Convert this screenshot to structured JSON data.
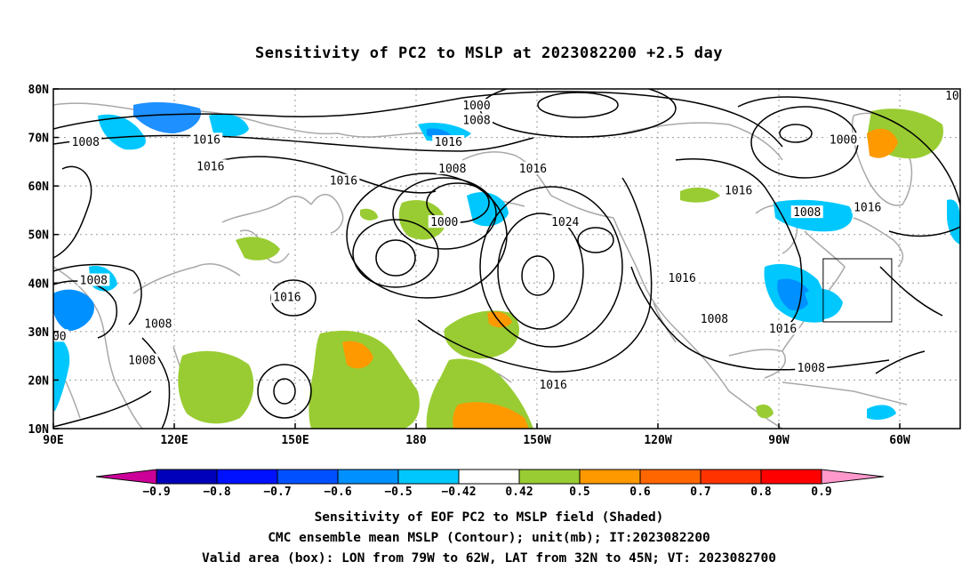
{
  "title": "Sensitivity of PC2 to MSLP at 2023082200 +2.5 day",
  "map": {
    "lon_ticks": [
      "90E",
      "120E",
      "150E",
      "180",
      "150W",
      "120W",
      "90W",
      "60W"
    ],
    "lat_ticks": [
      "80N",
      "70N",
      "60N",
      "50N",
      "40N",
      "30N",
      "20N",
      "10N"
    ],
    "contour_labels": [
      {
        "text": "1000",
        "lon": -165,
        "lat": 76.5
      },
      {
        "text": "1008",
        "lon": -165,
        "lat": 73.5
      },
      {
        "text": "1016",
        "lon": -172,
        "lat": 69
      },
      {
        "text": "1008",
        "lon": 98,
        "lat": 69
      },
      {
        "text": "1016",
        "lon": 128,
        "lat": 69.5
      },
      {
        "text": "1016",
        "lon": 129,
        "lat": 64
      },
      {
        "text": "1016",
        "lon": 162,
        "lat": 61
      },
      {
        "text": "1008",
        "lon": -171,
        "lat": 63.5
      },
      {
        "text": "1016",
        "lon": -151,
        "lat": 63.5
      },
      {
        "text": "1000",
        "lon": -173,
        "lat": 52.5
      },
      {
        "text": "1024",
        "lon": -143,
        "lat": 52.5
      },
      {
        "text": "1008",
        "lon": 100,
        "lat": 40.5
      },
      {
        "text": "1008",
        "lon": 116,
        "lat": 31.5
      },
      {
        "text": "1008",
        "lon": 112,
        "lat": 24
      },
      {
        "text": "1016",
        "lon": 148,
        "lat": 37
      },
      {
        "text": "1016",
        "lon": -146,
        "lat": 19
      },
      {
        "text": "1016",
        "lon": -114,
        "lat": 41
      },
      {
        "text": "1008",
        "lon": -106,
        "lat": 32.5
      },
      {
        "text": "1016",
        "lon": -89,
        "lat": 30.5
      },
      {
        "text": "1008",
        "lon": -82,
        "lat": 22.5
      },
      {
        "text": "1016",
        "lon": -100,
        "lat": 59
      },
      {
        "text": "1008",
        "lon": -83,
        "lat": 54.5
      },
      {
        "text": "1016",
        "lon": -68,
        "lat": 55.5
      },
      {
        "text": "1000",
        "lon": -74,
        "lat": 69.5
      },
      {
        "text": "00",
        "lon": 91.5,
        "lat": 29
      },
      {
        "text": "10",
        "lon": -47,
        "lat": 78.5
      }
    ],
    "valid_box": {
      "lon_min": -79,
      "lon_max": -62,
      "lat_min": 32,
      "lat_max": 45
    }
  },
  "colorbar": {
    "labels": [
      "-0.9",
      "-0.8",
      "-0.7",
      "-0.6",
      "-0.5",
      "-0.42",
      "0.42",
      "0.5",
      "0.6",
      "0.7",
      "0.8",
      "0.9"
    ],
    "colors": [
      "#0000bb",
      "#0011ff",
      "#0050ff",
      "#0090ff",
      "#00c8ff",
      "#ffffff",
      "#99cc33",
      "#ff9900",
      "#ff6600",
      "#ff3300",
      "#ff0000"
    ],
    "low_end_color": "#cc0099",
    "high_end_color": "#ff99cc"
  },
  "footer": {
    "line1": "Sensitivity of EOF PC2 to MSLP field (Shaded)",
    "line2": "CMC ensemble mean MSLP (Contour); unit(mb); IT:2023082200",
    "line3": "Valid area (box): LON from 79W to 62W, LAT from 32N to 45N; VT: 2023082700"
  }
}
